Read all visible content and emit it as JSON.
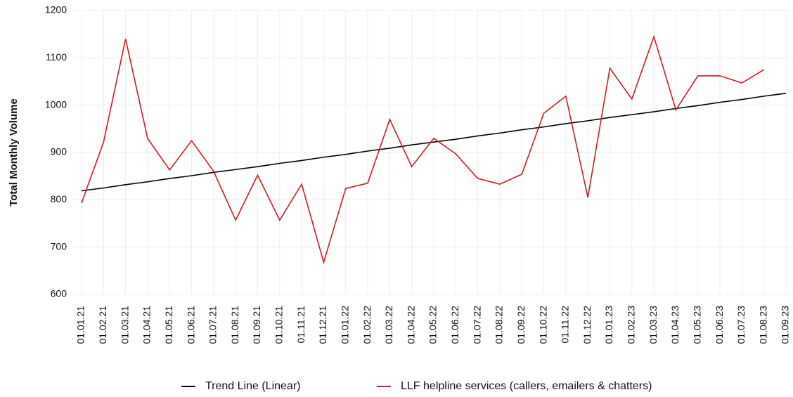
{
  "chart_data": {
    "type": "line",
    "y_label": "Total Monthly Volume",
    "categories": [
      "01.01.21",
      "01.02.21",
      "01.03.21",
      "01.04.21",
      "01.05.21",
      "01.06.21",
      "01.07.21",
      "01.08.21",
      "01.09.21",
      "01.10.21",
      "01.11.21",
      "01.12.21",
      "01.01.22",
      "01.02.22",
      "01.03.22",
      "01.04.22",
      "01.05.22",
      "01.06.22",
      "01.07.22",
      "01.08.22",
      "01.09.22",
      "01.10.22",
      "01.11.22",
      "01.12.22",
      "01.01.23",
      "01.02.23",
      "01.03.23",
      "01.04.23",
      "01.05.23",
      "01.06.23",
      "01.07.23",
      "01.08.23",
      "01.09.23"
    ],
    "series": [
      {
        "name": "Trend Line (Linear)",
        "color": "#000000",
        "values": [
          819,
          825,
          832,
          838,
          845,
          851,
          858,
          864,
          870,
          877,
          883,
          890,
          896,
          903,
          909,
          916,
          922,
          928,
          935,
          941,
          948,
          954,
          961,
          967,
          974,
          980,
          986,
          993,
          999,
          1006,
          1012,
          1019,
          1025
        ]
      },
      {
        "name": "LLF helpline services (callers, emailers & chatters)",
        "color": "#d0191f",
        "values": [
          793,
          922,
          1140,
          930,
          863,
          925,
          860,
          757,
          852,
          757,
          833,
          668,
          824,
          835,
          970,
          870,
          930,
          897,
          845,
          833,
          854,
          983,
          1019,
          805,
          1078,
          1013,
          1145,
          990,
          1062,
          1062,
          1047,
          1075,
          null
        ]
      }
    ],
    "ylim": [
      600,
      1200
    ],
    "yticks": [
      600,
      700,
      800,
      900,
      1000,
      1100,
      1200
    ],
    "grid": true
  }
}
